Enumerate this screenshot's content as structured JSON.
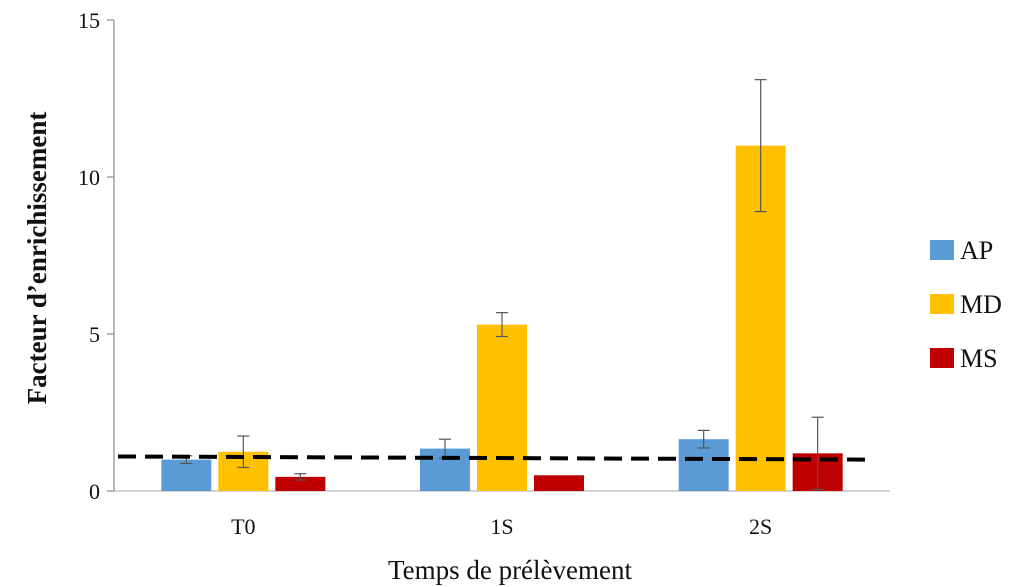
{
  "chart_data": {
    "type": "bar",
    "xlabel": "Temps de prélèvement",
    "ylabel": "Facteur d’enrichissement",
    "ylim": [
      0,
      15
    ],
    "yticks": [
      0,
      5,
      10,
      15
    ],
    "categories": [
      "T0",
      "1S",
      "2S"
    ],
    "series": [
      {
        "name": "AP",
        "color": "#5b9bd5",
        "values": [
          1.0,
          1.35,
          1.65
        ],
        "errors": [
          0.12,
          0.3,
          0.28
        ]
      },
      {
        "name": "MD",
        "color": "#ffc000",
        "values": [
          1.25,
          5.3,
          11.0
        ],
        "errors": [
          0.5,
          0.38,
          2.1
        ]
      },
      {
        "name": "MS",
        "color": "#c00000",
        "values": [
          0.45,
          0.5,
          1.2
        ],
        "errors": [
          0.1,
          0.0,
          1.15
        ]
      }
    ],
    "reference_line": {
      "style": "dashed",
      "color": "#000000",
      "y_start": 1.1,
      "y_end": 1.0
    },
    "grid": false,
    "legend_position": "right"
  }
}
